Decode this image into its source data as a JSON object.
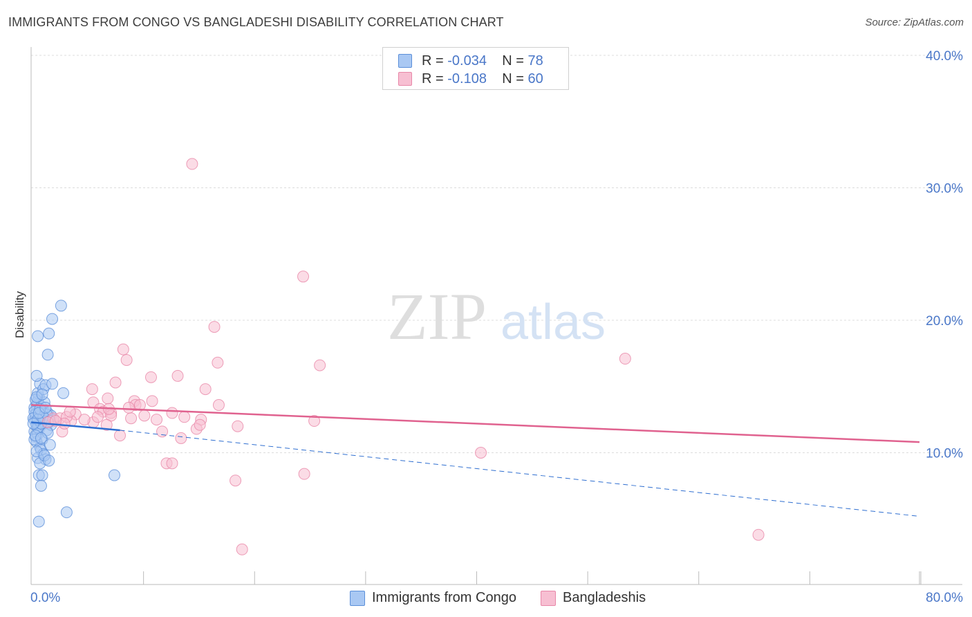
{
  "title": "IMMIGRANTS FROM CONGO VS BANGLADESHI DISABILITY CORRELATION CHART",
  "source": "Source: ZipAtlas.com",
  "watermark": {
    "zip": "ZIP",
    "atlas": "atlas"
  },
  "legend_top": {
    "rows": [
      {
        "r_label": "R =",
        "r_value": "-0.034",
        "n_label": "N =",
        "n_value": "78"
      },
      {
        "r_label": "R =",
        "r_value": "-0.108",
        "n_label": "N =",
        "n_value": "60"
      }
    ]
  },
  "colors": {
    "blue_fill": "#a9c8f3",
    "blue_stroke": "#5b8fd9",
    "blue_line": "#2e6ed0",
    "pink_fill": "#f7bfd2",
    "pink_stroke": "#e887a8",
    "pink_line": "#e0628f",
    "grid": "#dcdcdc",
    "tick_label": "#4a77c8"
  },
  "chart_data": {
    "type": "scatter",
    "title": "IMMIGRANTS FROM CONGO VS BANGLADESHI DISABILITY CORRELATION CHART",
    "xlabel": "",
    "ylabel": "Disability",
    "xlim": [
      0,
      80
    ],
    "ylim": [
      0,
      40
    ],
    "x_tick_labels": [
      "0.0%",
      "80.0%"
    ],
    "y_ticks": [
      10,
      20,
      30,
      40
    ],
    "y_tick_labels": [
      "10.0%",
      "20.0%",
      "30.0%",
      "40.0%"
    ],
    "grid": true,
    "series": [
      {
        "name": "Immigrants from Congo",
        "r": -0.034,
        "n": 78,
        "trend": {
          "x": [
            0,
            8
          ],
          "y": [
            12.3,
            11.7
          ]
        },
        "trend_extended": {
          "x": [
            8,
            80
          ],
          "y": [
            11.7,
            5.2
          ]
        },
        "points": [
          [
            0.3,
            12.5
          ],
          [
            0.4,
            12.8
          ],
          [
            0.5,
            13.2
          ],
          [
            0.6,
            12.1
          ],
          [
            0.3,
            11.6
          ],
          [
            0.8,
            12.9
          ],
          [
            0.5,
            13.6
          ],
          [
            0.7,
            14.2
          ],
          [
            0.4,
            11.2
          ],
          [
            0.6,
            13.9
          ],
          [
            0.9,
            12.4
          ],
          [
            1.0,
            13.1
          ],
          [
            0.5,
            12.0
          ],
          [
            0.7,
            11.8
          ],
          [
            1.2,
            12.6
          ],
          [
            0.3,
            13.4
          ],
          [
            0.6,
            14.5
          ],
          [
            0.8,
            15.2
          ],
          [
            0.5,
            15.8
          ],
          [
            1.1,
            14.8
          ],
          [
            1.3,
            15.1
          ],
          [
            0.4,
            14.0
          ],
          [
            0.9,
            13.5
          ],
          [
            1.2,
            12.2
          ],
          [
            1.5,
            13.0
          ],
          [
            0.7,
            12.7
          ],
          [
            0.6,
            11.4
          ],
          [
            1.0,
            11.0
          ],
          [
            0.5,
            10.8
          ],
          [
            0.8,
            10.4
          ],
          [
            1.4,
            11.7
          ],
          [
            1.6,
            12.3
          ],
          [
            0.9,
            10.2
          ],
          [
            1.1,
            9.9
          ],
          [
            1.3,
            9.5
          ],
          [
            1.7,
            10.6
          ],
          [
            0.6,
            9.6
          ],
          [
            0.8,
            9.2
          ],
          [
            0.7,
            8.3
          ],
          [
            1.0,
            8.3
          ],
          [
            0.9,
            7.5
          ],
          [
            0.7,
            4.8
          ],
          [
            3.2,
            5.5
          ],
          [
            7.5,
            8.3
          ],
          [
            2.9,
            14.5
          ],
          [
            1.9,
            15.2
          ],
          [
            1.5,
            17.4
          ],
          [
            1.6,
            19.0
          ],
          [
            0.6,
            18.8
          ],
          [
            1.9,
            20.1
          ],
          [
            2.7,
            21.1
          ],
          [
            0.4,
            12.9
          ],
          [
            1.8,
            12.8
          ],
          [
            1.2,
            13.8
          ],
          [
            0.5,
            14.2
          ],
          [
            0.3,
            13.1
          ],
          [
            0.4,
            12.3
          ],
          [
            0.6,
            11.9
          ],
          [
            0.2,
            12.6
          ],
          [
            1.4,
            12.9
          ],
          [
            1.8,
            12.1
          ],
          [
            2.0,
            12.5
          ],
          [
            0.9,
            12.2
          ],
          [
            1.1,
            12.7
          ],
          [
            0.3,
            11.0
          ],
          [
            0.8,
            13.3
          ],
          [
            1.0,
            14.4
          ],
          [
            0.6,
            12.5
          ],
          [
            1.5,
            11.5
          ],
          [
            0.4,
            11.3
          ],
          [
            0.2,
            12.2
          ],
          [
            0.5,
            10.1
          ],
          [
            1.2,
            9.8
          ],
          [
            1.6,
            9.4
          ],
          [
            0.7,
            13.0
          ],
          [
            1.3,
            13.4
          ],
          [
            0.9,
            11.1
          ],
          [
            1.7,
            12.4
          ]
        ]
      },
      {
        "name": "Bangladeshis",
        "r": -0.108,
        "n": 60,
        "trend": {
          "x": [
            0,
            80
          ],
          "y": [
            13.6,
            10.8
          ]
        },
        "points": [
          [
            14.5,
            31.8
          ],
          [
            24.5,
            23.3
          ],
          [
            16.5,
            19.5
          ],
          [
            26.0,
            16.6
          ],
          [
            53.5,
            17.1
          ],
          [
            16.8,
            16.8
          ],
          [
            8.3,
            17.8
          ],
          [
            8.6,
            17.0
          ],
          [
            13.2,
            15.8
          ],
          [
            10.8,
            15.7
          ],
          [
            7.6,
            15.3
          ],
          [
            15.7,
            14.8
          ],
          [
            5.5,
            14.8
          ],
          [
            6.9,
            14.1
          ],
          [
            9.3,
            13.9
          ],
          [
            10.9,
            13.9
          ],
          [
            5.6,
            13.8
          ],
          [
            16.9,
            13.6
          ],
          [
            9.4,
            13.6
          ],
          [
            9.8,
            13.6
          ],
          [
            6.2,
            13.3
          ],
          [
            6.5,
            13.1
          ],
          [
            7.2,
            13.0
          ],
          [
            12.7,
            13.0
          ],
          [
            4.0,
            12.9
          ],
          [
            10.2,
            12.8
          ],
          [
            7.2,
            12.8
          ],
          [
            13.8,
            12.7
          ],
          [
            11.3,
            12.5
          ],
          [
            15.3,
            12.5
          ],
          [
            25.5,
            12.4
          ],
          [
            2.0,
            12.6
          ],
          [
            3.6,
            12.4
          ],
          [
            5.6,
            12.3
          ],
          [
            2.6,
            12.6
          ],
          [
            3.2,
            12.7
          ],
          [
            18.6,
            12.0
          ],
          [
            6.8,
            12.1
          ],
          [
            14.9,
            11.8
          ],
          [
            11.8,
            11.6
          ],
          [
            2.8,
            11.6
          ],
          [
            8.0,
            11.3
          ],
          [
            13.5,
            11.1
          ],
          [
            40.5,
            10.0
          ],
          [
            12.2,
            9.2
          ],
          [
            12.7,
            9.2
          ],
          [
            18.4,
            7.9
          ],
          [
            24.6,
            8.4
          ],
          [
            19.0,
            2.7
          ],
          [
            65.5,
            3.8
          ],
          [
            3.0,
            12.2
          ],
          [
            4.8,
            12.5
          ],
          [
            7.0,
            13.3
          ],
          [
            9.0,
            12.6
          ],
          [
            15.2,
            12.1
          ],
          [
            1.5,
            12.3
          ],
          [
            3.5,
            13.1
          ],
          [
            6.0,
            12.7
          ],
          [
            8.8,
            13.4
          ],
          [
            2.2,
            12.4
          ]
        ]
      }
    ]
  },
  "legend_bottom": [
    {
      "label": "Immigrants from Congo"
    },
    {
      "label": "Bangladeshis"
    }
  ]
}
